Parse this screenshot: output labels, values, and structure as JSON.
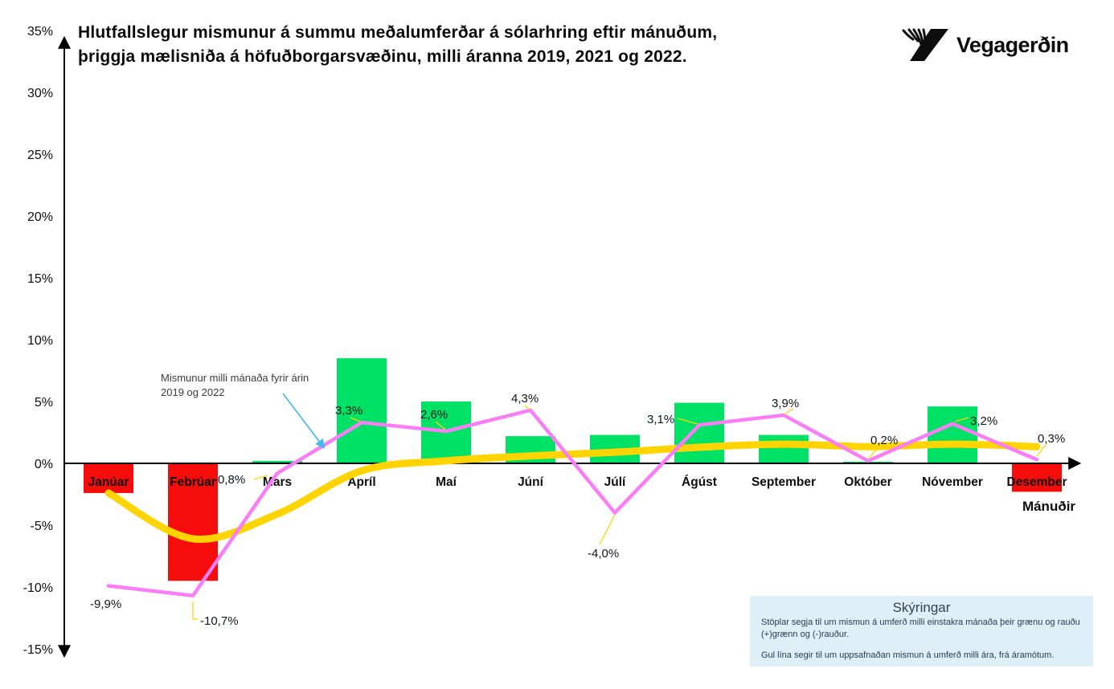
{
  "header": {
    "title": "Hlutfallslegur mismunur á summu meðalumferðar á sólarhring eftir mánuðum, þriggja mælisniða á höfuðborgarsvæðinu, milli áranna 2019, 2021 og 2022.",
    "logo_text": "Vegagerðin"
  },
  "annotation": {
    "text": "Mismunur milli mánaða fyrir árin 2019 og 2022"
  },
  "explanations": {
    "title": "Skýringar",
    "paragraphs": [
      "Stöplar segja til um mismun á umferð milli einstakra mánaða  þeir grænu og rauðu (+)grænn og (-)rauður.",
      "Gul lína segir til um uppsafnaðan mismun á umferð milli ára, frá áramótum."
    ]
  },
  "colors": {
    "bar_positive": "#00E266",
    "bar_negative": "#F70C0C",
    "pink_line": "#FA7DF7",
    "yellow_line": "#FFD400",
    "annotation_arrow": "#41BCEC",
    "legend_bg": "#DDF0F8",
    "axis": "#000000",
    "label_text": "#10161c"
  },
  "chart_data": {
    "type": "bar",
    "title": "Hlutfallslegur mismunur á summu meðalumferðar á sólarhring eftir mánuðum, þriggja mælisniða á höfuðborgarsvæðinu, milli áranna 2019, 2021 og 2022.",
    "xlabel": "Mánuðir",
    "ylabel": "",
    "ylim": [
      -15,
      35
    ],
    "y_tick_values": [
      35,
      30,
      25,
      20,
      15,
      10,
      5,
      0,
      -5,
      -10,
      -15
    ],
    "y_tick_labels": [
      "35%",
      "30%",
      "25%",
      "20%",
      "15%",
      "10%",
      "5%",
      "0%",
      "-5%",
      "-10%",
      "-15%"
    ],
    "categories": [
      "Janúar",
      "Febrúar",
      "Mars",
      "Apríl",
      "Maí",
      "Júní",
      "Júlí",
      "Ágúst",
      "September",
      "Október",
      "Nóvember",
      "Desember"
    ],
    "series": [
      {
        "name": "Mismunur á umferð milli einstakra mánaða (stöplar, (+)grænn og (-)rauður)",
        "type": "bar",
        "values": [
          -2.4,
          -9.5,
          0.2,
          8.5,
          5.0,
          2.2,
          2.3,
          4.9,
          2.3,
          0.1,
          4.6,
          -2.3
        ]
      },
      {
        "name": "Mismunur milli mánaða fyrir árin 2019 og 2022",
        "type": "line",
        "color": "#FA7DF7",
        "values": [
          -9.9,
          -10.7,
          -0.8,
          3.3,
          2.6,
          4.3,
          -4.0,
          3.1,
          3.9,
          0.2,
          3.2,
          0.3
        ],
        "labels": [
          "-9,9%",
          "-10,7%",
          "-0,8%",
          "3,3%",
          "2,6%",
          "4,3%",
          "-4,0%",
          "3,1%",
          "3,9%",
          "0,2%",
          "3,2%",
          "0,3%"
        ]
      },
      {
        "name": "Uppsafnaður mismunur á umferð milli ára, frá áramótum (gul lína)",
        "type": "line",
        "color": "#FFD400",
        "values": [
          -2.4,
          -6.1,
          -4.1,
          -0.6,
          0.2,
          0.6,
          0.9,
          1.3,
          1.55,
          1.35,
          1.55,
          1.35
        ]
      }
    ]
  }
}
